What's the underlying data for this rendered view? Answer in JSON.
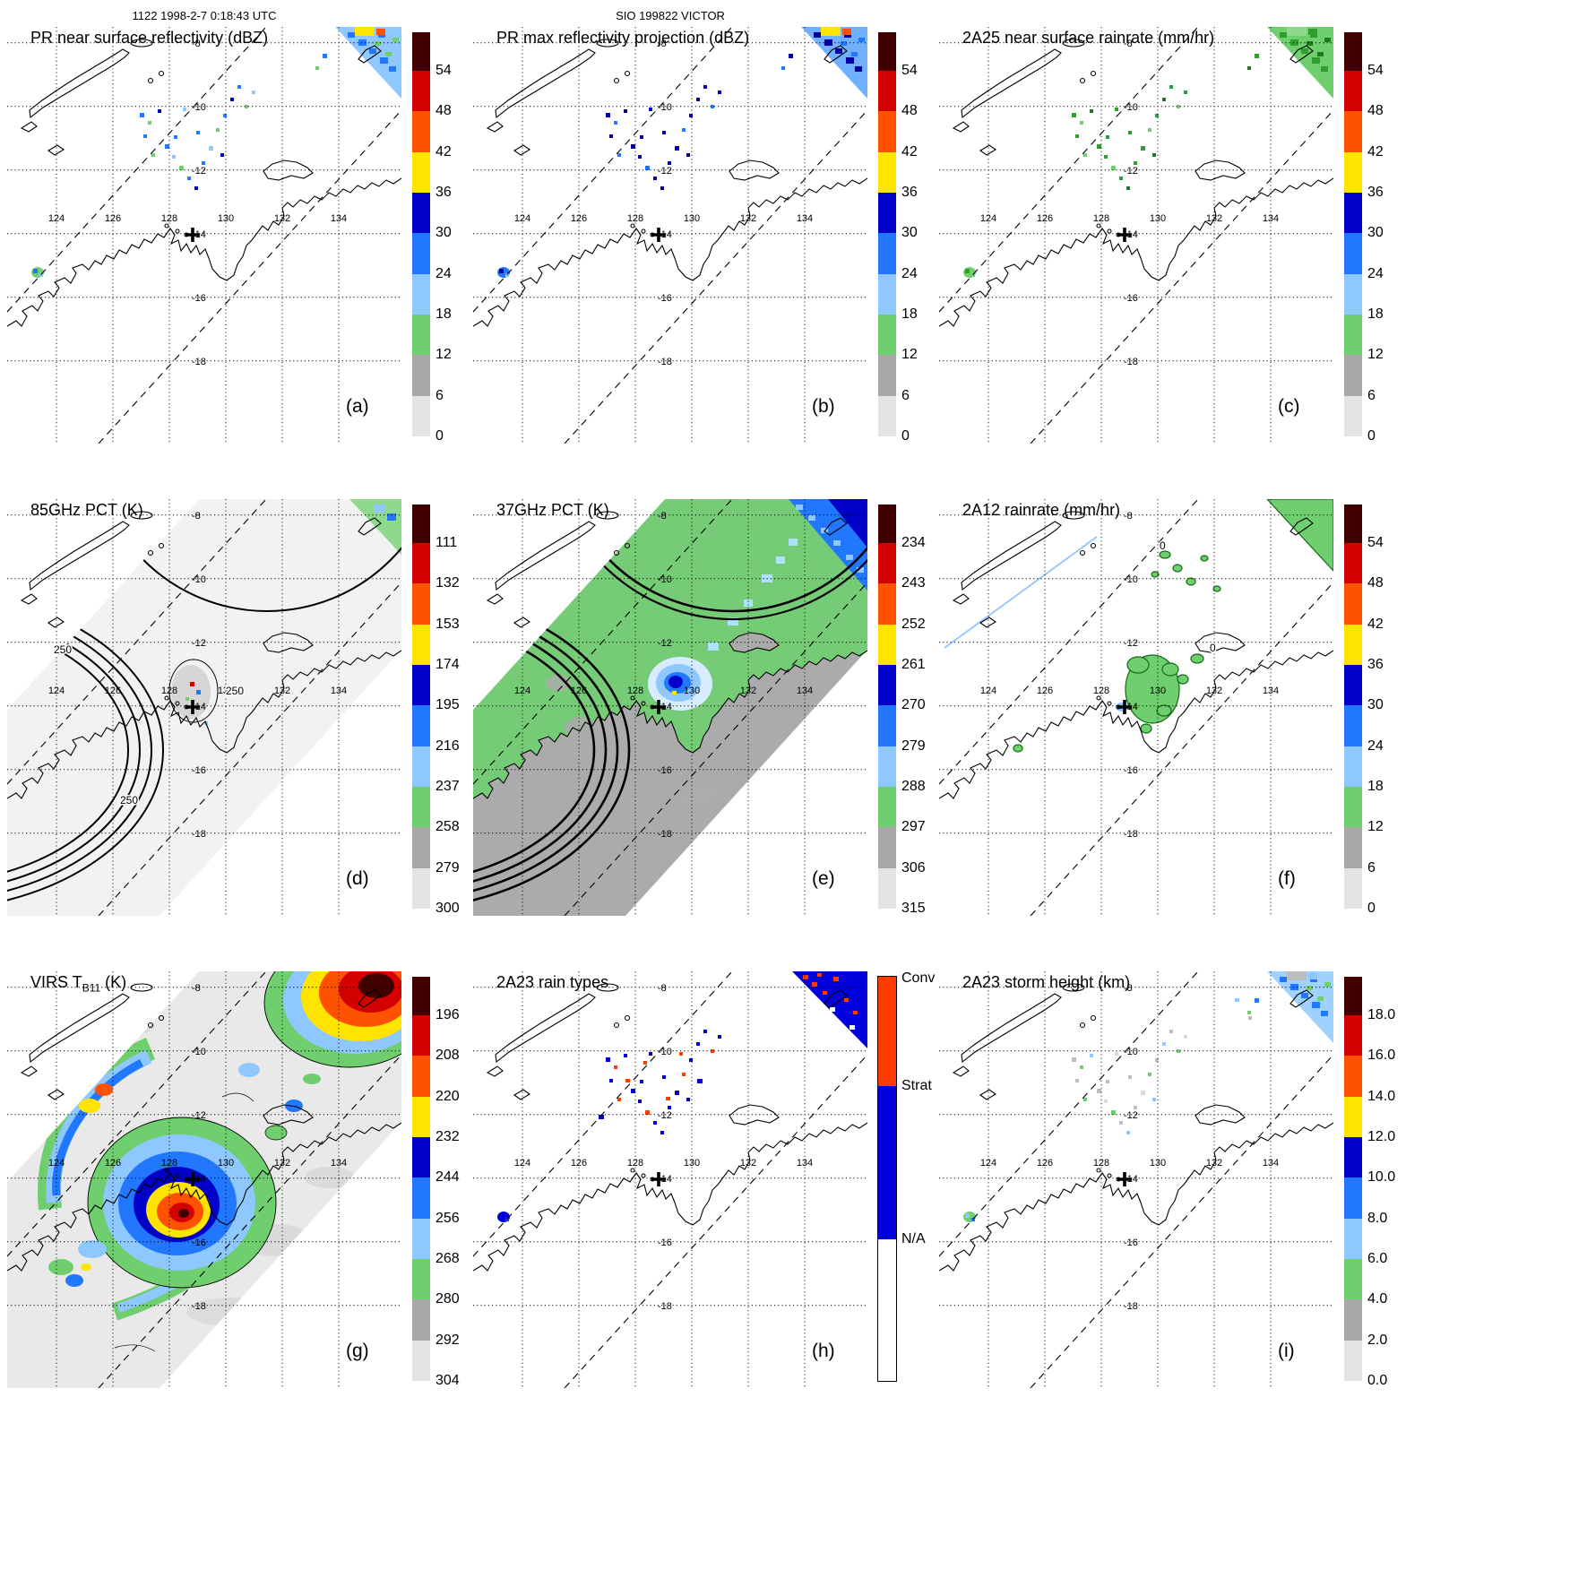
{
  "header": {
    "timestamp": "1122 1998-2-7 0:18:43 UTC",
    "storm_id": "SIO 199822 VICTOR"
  },
  "map_labels": {
    "lon": [
      "124",
      "126",
      "128",
      "130",
      "132",
      "134"
    ],
    "lat": [
      "-8",
      "-10",
      "-12",
      "-14",
      "-16",
      "-18"
    ]
  },
  "palette": {
    "spectral": [
      "#400000",
      "#d40000",
      "#ff5200",
      "#ffe400",
      "#0000c8",
      "#2277ff",
      "#8fc7ff",
      "#6fcf6f",
      "#a8a8a8",
      "#e4e4e4"
    ],
    "raintype": [
      "#ff3c00",
      "#0000dd",
      "#ffffff"
    ]
  },
  "panels": [
    {
      "letter": "(a)",
      "title": "PR near surface reflectivity (dBZ)",
      "colorbar": {
        "kind": "spectral",
        "labels": [
          "54",
          "48",
          "42",
          "36",
          "30",
          "24",
          "18",
          "12",
          "6",
          "0"
        ]
      }
    },
    {
      "letter": "(b)",
      "title": "PR max reflectivity projection (dBZ)",
      "colorbar": {
        "kind": "spectral",
        "labels": [
          "54",
          "48",
          "42",
          "36",
          "30",
          "24",
          "18",
          "12",
          "6",
          "0"
        ]
      }
    },
    {
      "letter": "(c)",
      "title": "2A25 near surface rainrate (mm/hr)",
      "colorbar": {
        "kind": "spectral",
        "labels": [
          "54",
          "48",
          "42",
          "36",
          "30",
          "24",
          "18",
          "12",
          "6",
          "0"
        ]
      }
    },
    {
      "letter": "(d)",
      "title": "85GHz PCT (K)",
      "colorbar": {
        "kind": "spectral",
        "labels": [
          "111",
          "132",
          "153",
          "174",
          "195",
          "216",
          "237",
          "258",
          "279",
          "300"
        ]
      },
      "contour_labels": [
        "250",
        "250",
        "250"
      ]
    },
    {
      "letter": "(e)",
      "title": "37GHz PCT (K)",
      "colorbar": {
        "kind": "spectral",
        "labels": [
          "234",
          "243",
          "252",
          "261",
          "270",
          "279",
          "288",
          "297",
          "306",
          "315"
        ]
      }
    },
    {
      "letter": "(f)",
      "title": "2A12 rainrate (mm/hr)",
      "colorbar": {
        "kind": "spectral",
        "labels": [
          "54",
          "48",
          "42",
          "36",
          "30",
          "24",
          "18",
          "12",
          "6",
          "0"
        ]
      },
      "contour_labels": [
        "0",
        "0"
      ]
    },
    {
      "letter": "(g)",
      "title_prefix": "VIRS T",
      "title_sub": "B11",
      "title_suffix": " (K)",
      "colorbar": {
        "kind": "spectral",
        "labels": [
          "196",
          "208",
          "220",
          "232",
          "244",
          "256",
          "268",
          "280",
          "292",
          "304"
        ]
      }
    },
    {
      "letter": "(h)",
      "title": "2A23 rain types",
      "colorbar": {
        "kind": "raintype",
        "labels": [
          "Conv",
          "Strat",
          "N/A"
        ]
      }
    },
    {
      "letter": "(i)",
      "title": "2A23 storm height (km)",
      "colorbar": {
        "kind": "spectral",
        "labels": [
          "18.0",
          "16.0",
          "14.0",
          "12.0",
          "10.0",
          "8.0",
          "6.0",
          "4.0",
          "2.0",
          "0.0"
        ]
      }
    }
  ]
}
